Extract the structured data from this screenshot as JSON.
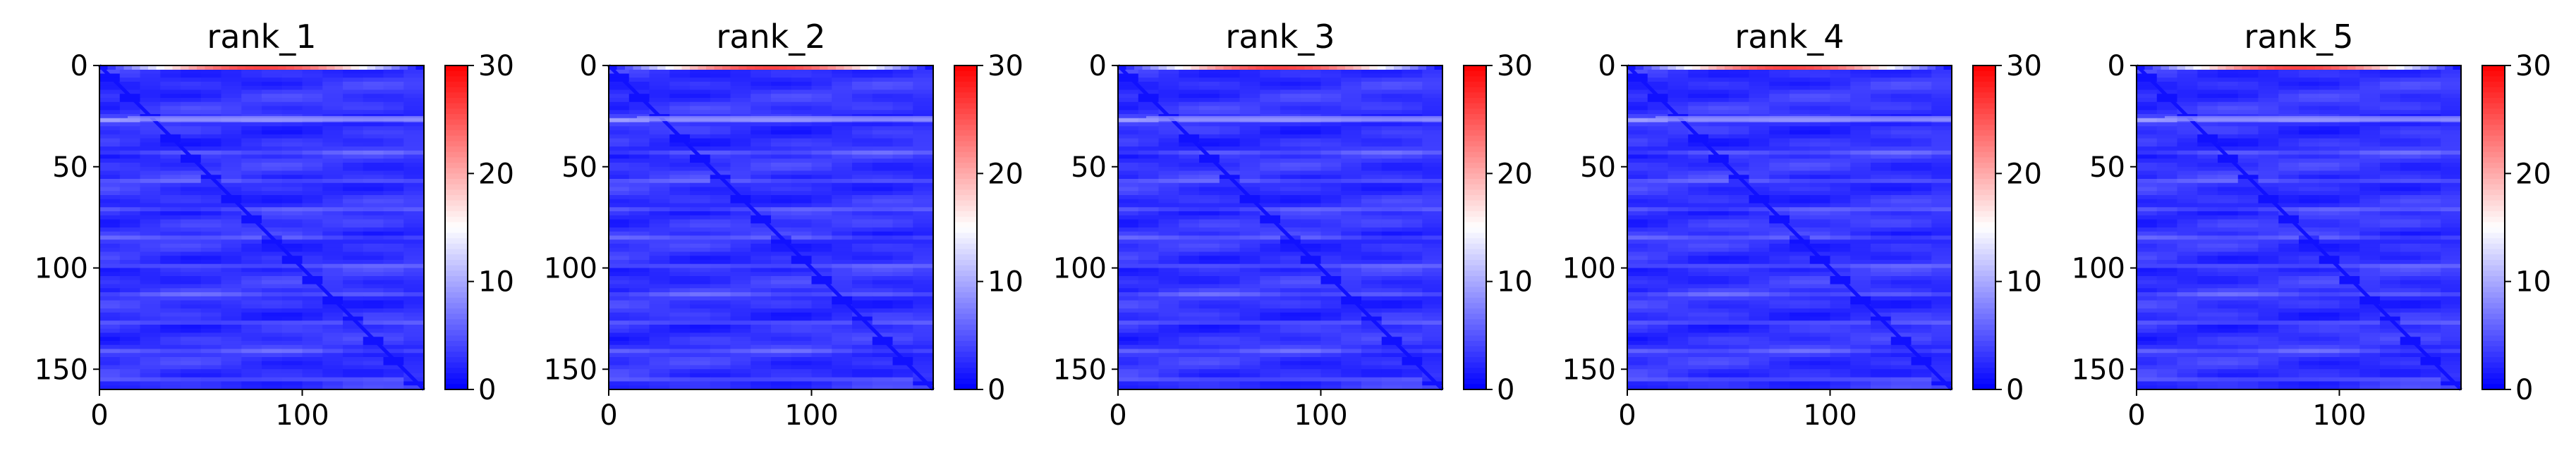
{
  "chart_data": [
    {
      "type": "heatmap",
      "title": "rank_1",
      "matrix_size": 160,
      "xticks": [
        "0",
        "100"
      ],
      "yticks": [
        "0",
        "50",
        "100",
        "150"
      ],
      "xlim": [
        0,
        160
      ],
      "ylim": [
        160,
        0
      ],
      "colorbar": {
        "min": 0,
        "max": 30,
        "ticks": [
          "0",
          "10",
          "20",
          "30"
        ],
        "colormap": "bwr"
      },
      "typical_value": 3,
      "diagonal_value": 1,
      "top_rows_value": 26,
      "bright_band_row": 26
    },
    {
      "type": "heatmap",
      "title": "rank_2",
      "matrix_size": 160,
      "xticks": [
        "0",
        "100"
      ],
      "yticks": [
        "0",
        "50",
        "100",
        "150"
      ],
      "xlim": [
        0,
        160
      ],
      "ylim": [
        160,
        0
      ],
      "colorbar": {
        "min": 0,
        "max": 30,
        "ticks": [
          "0",
          "10",
          "20",
          "30"
        ],
        "colormap": "bwr"
      },
      "typical_value": 3,
      "diagonal_value": 1,
      "top_rows_value": 26,
      "bright_band_row": 26
    },
    {
      "type": "heatmap",
      "title": "rank_3",
      "matrix_size": 160,
      "xticks": [
        "0",
        "100"
      ],
      "yticks": [
        "0",
        "50",
        "100",
        "150"
      ],
      "xlim": [
        0,
        160
      ],
      "ylim": [
        160,
        0
      ],
      "colorbar": {
        "min": 0,
        "max": 30,
        "ticks": [
          "0",
          "10",
          "20",
          "30"
        ],
        "colormap": "bwr"
      },
      "typical_value": 3,
      "diagonal_value": 1,
      "top_rows_value": 26,
      "bright_band_row": 26
    },
    {
      "type": "heatmap",
      "title": "rank_4",
      "matrix_size": 160,
      "xticks": [
        "0",
        "100"
      ],
      "yticks": [
        "0",
        "50",
        "100",
        "150"
      ],
      "xlim": [
        0,
        160
      ],
      "ylim": [
        160,
        0
      ],
      "colorbar": {
        "min": 0,
        "max": 30,
        "ticks": [
          "0",
          "10",
          "20",
          "30"
        ],
        "colormap": "bwr"
      },
      "typical_value": 3,
      "diagonal_value": 1,
      "top_rows_value": 26,
      "bright_band_row": 26
    },
    {
      "type": "heatmap",
      "title": "rank_5",
      "matrix_size": 160,
      "xticks": [
        "0",
        "100"
      ],
      "yticks": [
        "0",
        "50",
        "100",
        "150"
      ],
      "xlim": [
        0,
        160
      ],
      "ylim": [
        160,
        0
      ],
      "colorbar": {
        "min": 0,
        "max": 30,
        "ticks": [
          "0",
          "10",
          "20",
          "30"
        ],
        "colormap": "bwr"
      },
      "typical_value": 3,
      "diagonal_value": 1,
      "top_rows_value": 26,
      "bright_band_row": 26
    }
  ],
  "colors": {
    "low": "#0000ff",
    "mid": "#ffffff",
    "high": "#ff0000",
    "axis": "#000000"
  }
}
